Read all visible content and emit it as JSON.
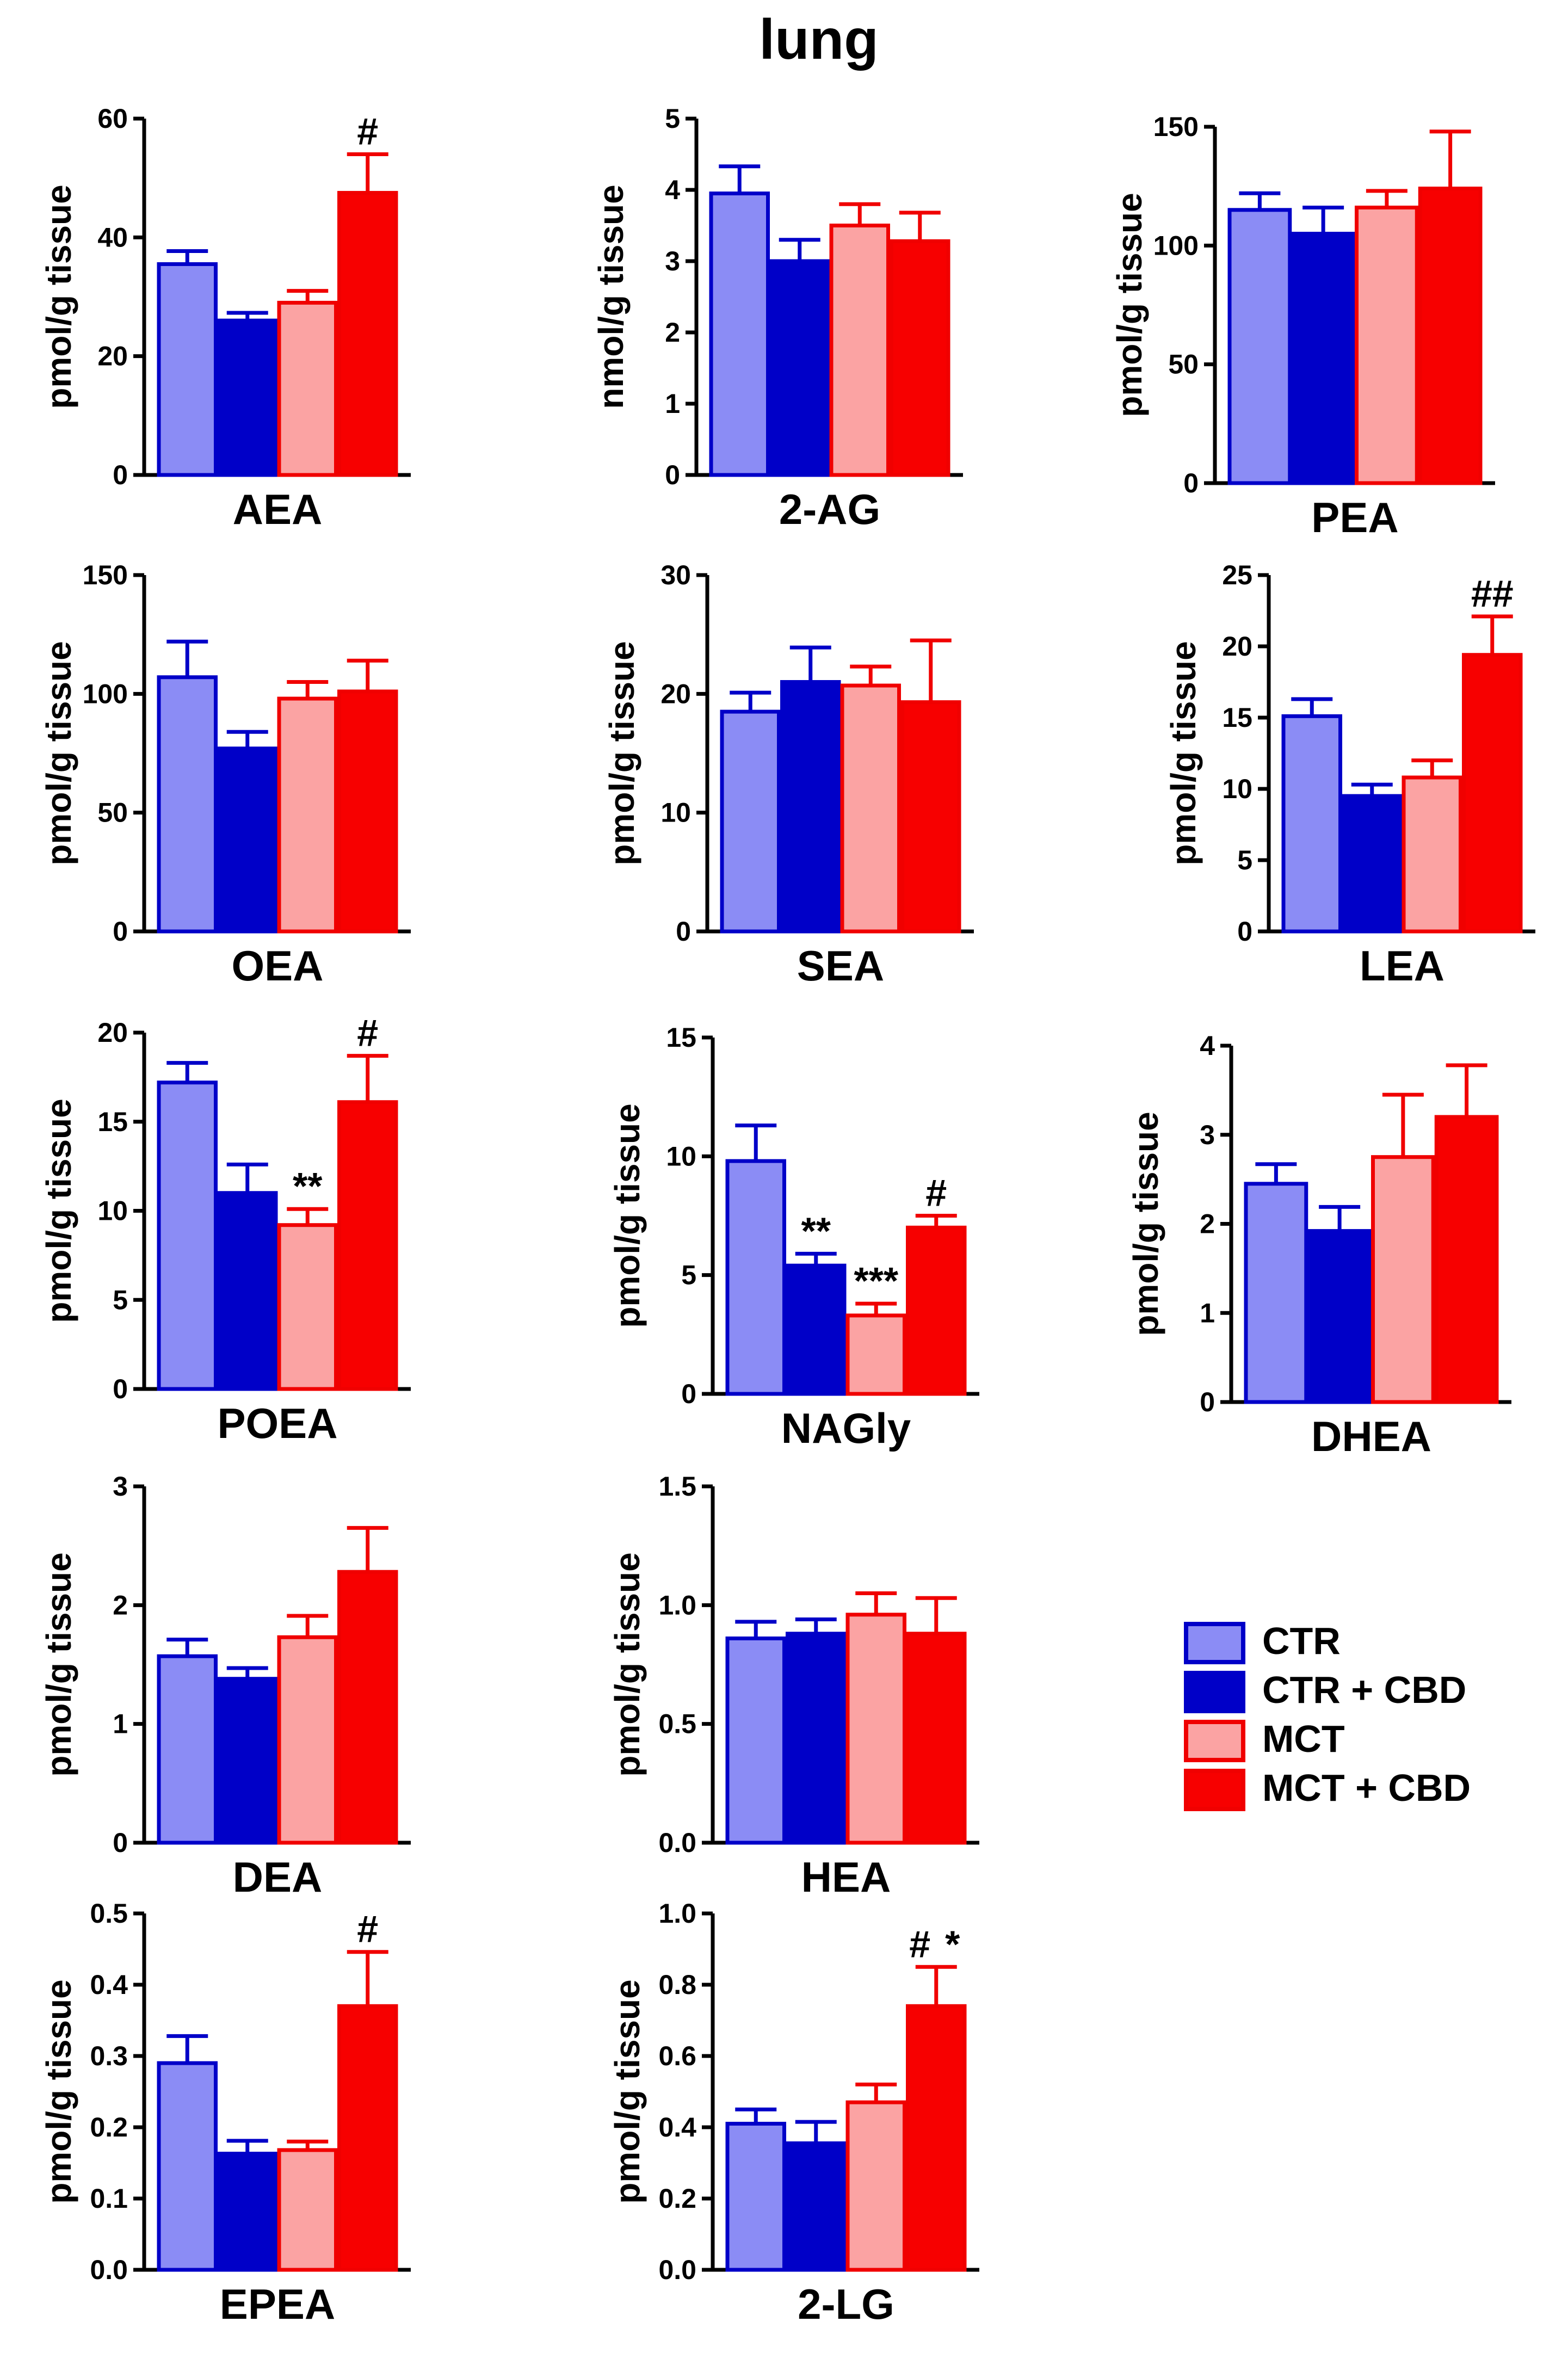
{
  "figure": {
    "title": "lung"
  },
  "legend": {
    "items": [
      {
        "label": "CTR",
        "fill": "#8b8cf5",
        "stroke": "#0000c8"
      },
      {
        "label": "CTR + CBD",
        "fill": "#0000c8",
        "stroke": "#0000c8"
      },
      {
        "label": "MCT",
        "fill": "#fba3a3",
        "stroke": "#f00000"
      },
      {
        "label": "MCT + CBD",
        "fill": "#f70000",
        "stroke": "#f00000"
      }
    ]
  },
  "chart_data": [
    {
      "type": "bar",
      "name": "AEA",
      "xlabel": "AEA",
      "ylabel": "pmol/g tissue",
      "ylim": [
        0,
        60
      ],
      "yticks": [
        0,
        20,
        40,
        60
      ],
      "ytick_labels": [
        "0",
        "20",
        "40",
        "60"
      ],
      "categories": [
        "CTR",
        "CTR + CBD",
        "MCT",
        "MCT + CBD"
      ],
      "values": [
        35.5,
        26,
        29,
        47.5
      ],
      "errors": [
        2.2,
        1.3,
        2,
        6.5
      ],
      "annotations": [
        {
          "bar": 3,
          "text": "#"
        }
      ]
    },
    {
      "type": "bar",
      "name": "2-AG",
      "xlabel": "2-AG",
      "ylabel": "nmol/g tissue",
      "ylim": [
        0,
        5
      ],
      "yticks": [
        0,
        1,
        2,
        3,
        4,
        5
      ],
      "ytick_labels": [
        "0",
        "1",
        "2",
        "3",
        "4",
        "5"
      ],
      "categories": [
        "CTR",
        "CTR + CBD",
        "MCT",
        "MCT + CBD"
      ],
      "values": [
        3.95,
        3,
        3.5,
        3.28
      ],
      "errors": [
        0.38,
        0.3,
        0.3,
        0.4
      ],
      "annotations": []
    },
    {
      "type": "bar",
      "name": "PEA",
      "xlabel": "PEA",
      "ylabel": "pmol/g tissue",
      "ylim": [
        0,
        150
      ],
      "yticks": [
        0,
        50,
        100,
        150
      ],
      "ytick_labels": [
        "0",
        "50",
        "100",
        "150"
      ],
      "categories": [
        "CTR",
        "CTR + CBD",
        "MCT",
        "MCT + CBD"
      ],
      "values": [
        115,
        105,
        116,
        124
      ],
      "errors": [
        7,
        11,
        7,
        24
      ],
      "annotations": []
    },
    {
      "type": "bar",
      "name": "OEA",
      "xlabel": "OEA",
      "ylabel": "pmol/g tissue",
      "ylim": [
        0,
        150
      ],
      "yticks": [
        0,
        50,
        100,
        150
      ],
      "ytick_labels": [
        "0",
        "50",
        "100",
        "150"
      ],
      "categories": [
        "CTR",
        "CTR + CBD",
        "MCT",
        "MCT + CBD"
      ],
      "values": [
        107,
        77,
        98,
        101
      ],
      "errors": [
        15,
        7,
        7,
        13
      ],
      "annotations": []
    },
    {
      "type": "bar",
      "name": "SEA",
      "xlabel": "SEA",
      "ylabel": "pmol/g tissue",
      "ylim": [
        0,
        30
      ],
      "yticks": [
        0,
        10,
        20,
        30
      ],
      "ytick_labels": [
        "0",
        "10",
        "20",
        "30"
      ],
      "categories": [
        "CTR",
        "CTR + CBD",
        "MCT",
        "MCT + CBD"
      ],
      "values": [
        18.5,
        21,
        20.7,
        19.3
      ],
      "errors": [
        1.6,
        2.9,
        1.6,
        5.2
      ],
      "annotations": []
    },
    {
      "type": "bar",
      "name": "LEA",
      "xlabel": "LEA",
      "ylabel": "pmol/g tissue",
      "ylim": [
        0,
        25
      ],
      "yticks": [
        0,
        5,
        10,
        15,
        20,
        25
      ],
      "ytick_labels": [
        "0",
        "5",
        "10",
        "15",
        "20",
        "25"
      ],
      "categories": [
        "CTR",
        "CTR + CBD",
        "MCT",
        "MCT + CBD"
      ],
      "values": [
        15.1,
        9.5,
        10.8,
        19.4
      ],
      "errors": [
        1.2,
        0.8,
        1.2,
        2.7
      ],
      "annotations": [
        {
          "bar": 3,
          "text": "##"
        }
      ]
    },
    {
      "type": "bar",
      "name": "POEA",
      "xlabel": "POEA",
      "ylabel": "pmol/g tissue",
      "ylim": [
        0,
        20
      ],
      "yticks": [
        0,
        5,
        10,
        15,
        20
      ],
      "ytick_labels": [
        "0",
        "5",
        "10",
        "15",
        "20"
      ],
      "categories": [
        "CTR",
        "CTR + CBD",
        "MCT",
        "MCT + CBD"
      ],
      "values": [
        17.2,
        11,
        9.2,
        16.1
      ],
      "errors": [
        1.1,
        1.6,
        0.9,
        2.6
      ],
      "annotations": [
        {
          "bar": 2,
          "text": "**"
        },
        {
          "bar": 3,
          "text": "#"
        }
      ]
    },
    {
      "type": "bar",
      "name": "NAGly",
      "xlabel": "NAGly",
      "ylabel": "pmol/g tissue",
      "ylim": [
        0,
        15
      ],
      "yticks": [
        0,
        5,
        10,
        15
      ],
      "ytick_labels": [
        "0",
        "5",
        "10",
        "15"
      ],
      "categories": [
        "CTR",
        "CTR + CBD",
        "MCT",
        "MCT + CBD"
      ],
      "values": [
        9.8,
        5.4,
        3.3,
        7
      ],
      "errors": [
        1.5,
        0.5,
        0.5,
        0.5
      ],
      "annotations": [
        {
          "bar": 1,
          "text": "**"
        },
        {
          "bar": 2,
          "text": "***"
        },
        {
          "bar": 3,
          "text": "#"
        }
      ]
    },
    {
      "type": "bar",
      "name": "DHEA",
      "xlabel": "DHEA",
      "ylabel": "pmol/g tissue",
      "ylim": [
        0,
        4
      ],
      "yticks": [
        0,
        1,
        2,
        3,
        4
      ],
      "ytick_labels": [
        "0",
        "1",
        "2",
        "3",
        "4"
      ],
      "categories": [
        "CTR",
        "CTR + CBD",
        "MCT",
        "MCT + CBD"
      ],
      "values": [
        2.45,
        1.92,
        2.75,
        3.2
      ],
      "errors": [
        0.22,
        0.27,
        0.7,
        0.58
      ],
      "annotations": []
    },
    {
      "type": "bar",
      "name": "DEA",
      "xlabel": "DEA",
      "ylabel": "pmol/g tissue",
      "ylim": [
        0,
        3
      ],
      "yticks": [
        0,
        1,
        2,
        3
      ],
      "ytick_labels": [
        "0",
        "1",
        "2",
        "3"
      ],
      "categories": [
        "CTR",
        "CTR + CBD",
        "MCT",
        "MCT + CBD"
      ],
      "values": [
        1.57,
        1.38,
        1.73,
        2.28
      ],
      "errors": [
        0.14,
        0.09,
        0.18,
        0.37
      ],
      "annotations": []
    },
    {
      "type": "bar",
      "name": "HEA",
      "xlabel": "HEA",
      "ylabel": "pmol/g tissue",
      "ylim": [
        0,
        1.5
      ],
      "yticks": [
        0,
        0.5,
        1,
        1.5
      ],
      "ytick_labels": [
        "0.0",
        "0.5",
        "1.0",
        "1.5"
      ],
      "categories": [
        "CTR",
        "CTR + CBD",
        "MCT",
        "MCT + CBD"
      ],
      "values": [
        0.86,
        0.88,
        0.96,
        0.88
      ],
      "errors": [
        0.07,
        0.06,
        0.09,
        0.15
      ],
      "annotations": []
    },
    {
      "type": "bar",
      "name": "EPEA",
      "xlabel": "EPEA",
      "ylabel": "pmol/g tissue",
      "ylim": [
        0,
        0.5
      ],
      "yticks": [
        0,
        0.1,
        0.2,
        0.3,
        0.4,
        0.5
      ],
      "ytick_labels": [
        "0.0",
        "0.1",
        "0.2",
        "0.3",
        "0.4",
        "0.5"
      ],
      "categories": [
        "CTR",
        "CTR + CBD",
        "MCT",
        "MCT + CBD"
      ],
      "values": [
        0.29,
        0.163,
        0.168,
        0.37
      ],
      "errors": [
        0.038,
        0.018,
        0.012,
        0.076
      ],
      "annotations": [
        {
          "bar": 3,
          "text": "#"
        }
      ]
    },
    {
      "type": "bar",
      "name": "2-LG",
      "xlabel": "2-LG",
      "ylabel": "pmol/g tissue",
      "ylim": [
        0,
        1
      ],
      "yticks": [
        0,
        0.2,
        0.4,
        0.6,
        0.8,
        1
      ],
      "ytick_labels": [
        "0.0",
        "0.2",
        "0.4",
        "0.6",
        "0.8",
        "1.0"
      ],
      "categories": [
        "CTR",
        "CTR + CBD",
        "MCT",
        "MCT + CBD"
      ],
      "values": [
        0.41,
        0.355,
        0.47,
        0.74
      ],
      "errors": [
        0.04,
        0.06,
        0.05,
        0.11
      ],
      "annotations": [
        {
          "bar": 3,
          "text": "#"
        },
        {
          "bar": 3,
          "text": "*"
        }
      ]
    }
  ]
}
